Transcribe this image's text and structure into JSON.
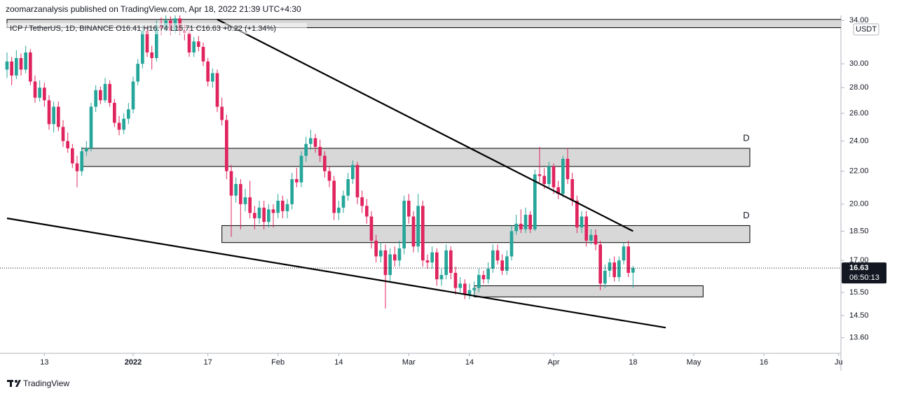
{
  "header": "zoomarzanalysis published on TradingView.com, Apr 18, 2022 21:39 UTC+4:30",
  "footer": "TradingView",
  "chart_data": {
    "type": "candlestick",
    "legend_text": "ICP / TetherUS, 1D, BINANCE  O16.41 H16.74 L15.71 C16.63 +0.22 (+1.34%)",
    "currency": "USDT",
    "countdown": "06:50:13",
    "up_color": "#26a69a",
    "down_color": "#e0245e",
    "line_color": "#000000",
    "zone_color": "#d1d1d1",
    "log_scale": true,
    "xlim": [
      "2021-12-05",
      "2022-06-03"
    ],
    "ylim": [
      13,
      34.5
    ],
    "yticks": [
      {
        "value": 34,
        "label": "34.00"
      },
      {
        "value": 30,
        "label": "30.00"
      },
      {
        "value": 28,
        "label": "28.00"
      },
      {
        "value": 26,
        "label": "26.00"
      },
      {
        "value": 24,
        "label": "24.00"
      },
      {
        "value": 22,
        "label": "22.00"
      },
      {
        "value": 20,
        "label": "20.00"
      },
      {
        "value": 18.5,
        "label": "18.50"
      },
      {
        "value": 17,
        "label": "17.00"
      },
      {
        "value": 15.5,
        "label": "15.50"
      },
      {
        "value": 14.5,
        "label": "14.50"
      },
      {
        "value": 13.6,
        "label": "13.60"
      }
    ],
    "xticks": [
      {
        "value": "2021-12-13",
        "label": "13"
      },
      {
        "value": "2022-01-01",
        "label": "2022"
      },
      {
        "value": "2022-01-17",
        "label": "17"
      },
      {
        "value": "2022-02-01",
        "label": "Feb"
      },
      {
        "value": "2022-02-14",
        "label": "14"
      },
      {
        "value": "2022-03-01",
        "label": "Mar"
      },
      {
        "value": "2022-03-14",
        "label": "14"
      },
      {
        "value": "2022-04-01",
        "label": "Apr"
      },
      {
        "value": "2022-04-18",
        "label": "18"
      },
      {
        "value": "2022-05-01",
        "label": "May"
      },
      {
        "value": "2022-05-16",
        "label": "16"
      },
      {
        "value": "2022-06-01",
        "label": "Ju"
      }
    ],
    "zones": [
      {
        "x": [
          "2021-12-05",
          "2022-06-03"
        ],
        "y": [
          33.3,
          34.1
        ]
      },
      {
        "x": [
          "2021-12-21",
          "2022-05-13"
        ],
        "y": [
          22.3,
          23.5
        ],
        "label": "D"
      },
      {
        "x": [
          "2022-01-20",
          "2022-05-13"
        ],
        "y": [
          17.9,
          18.8
        ],
        "label": "D"
      },
      {
        "x": [
          "2022-03-15",
          "2022-05-03"
        ],
        "y": [
          15.3,
          15.8
        ]
      }
    ],
    "trendlines": [
      {
        "x": [
          "2022-01-19",
          "2022-04-18"
        ],
        "y": [
          34.1,
          18.5
        ]
      },
      {
        "x": [
          "2021-12-05",
          "2022-04-25"
        ],
        "y": [
          19.2,
          14.0
        ]
      }
    ],
    "x": [
      "2021-12-05",
      "2021-12-06",
      "2021-12-07",
      "2021-12-08",
      "2021-12-09",
      "2021-12-10",
      "2021-12-11",
      "2021-12-12",
      "2021-12-13",
      "2021-12-14",
      "2021-12-15",
      "2021-12-16",
      "2021-12-17",
      "2021-12-18",
      "2021-12-19",
      "2021-12-20",
      "2021-12-21",
      "2021-12-22",
      "2021-12-23",
      "2021-12-24",
      "2021-12-25",
      "2021-12-26",
      "2021-12-27",
      "2021-12-28",
      "2021-12-29",
      "2021-12-30",
      "2021-12-31",
      "2022-01-01",
      "2022-01-02",
      "2022-01-03",
      "2022-01-04",
      "2022-01-05",
      "2022-01-06",
      "2022-01-07",
      "2022-01-08",
      "2022-01-09",
      "2022-01-10",
      "2022-01-11",
      "2022-01-12",
      "2022-01-13",
      "2022-01-14",
      "2022-01-15",
      "2022-01-16",
      "2022-01-17",
      "2022-01-18",
      "2022-01-19",
      "2022-01-20",
      "2022-01-21",
      "2022-01-22",
      "2022-01-23",
      "2022-01-24",
      "2022-01-25",
      "2022-01-26",
      "2022-01-27",
      "2022-01-28",
      "2022-01-29",
      "2022-01-30",
      "2022-01-31",
      "2022-02-01",
      "2022-02-02",
      "2022-02-03",
      "2022-02-04",
      "2022-02-05",
      "2022-02-06",
      "2022-02-07",
      "2022-02-08",
      "2022-02-09",
      "2022-02-10",
      "2022-02-11",
      "2022-02-12",
      "2022-02-13",
      "2022-02-14",
      "2022-02-15",
      "2022-02-16",
      "2022-02-17",
      "2022-02-18",
      "2022-02-19",
      "2022-02-20",
      "2022-02-21",
      "2022-02-22",
      "2022-02-23",
      "2022-02-24",
      "2022-02-25",
      "2022-02-26",
      "2022-02-27",
      "2022-02-28",
      "2022-03-01",
      "2022-03-02",
      "2022-03-03",
      "2022-03-04",
      "2022-03-05",
      "2022-03-06",
      "2022-03-07",
      "2022-03-08",
      "2022-03-09",
      "2022-03-10",
      "2022-03-11",
      "2022-03-12",
      "2022-03-13",
      "2022-03-14",
      "2022-03-15",
      "2022-03-16",
      "2022-03-17",
      "2022-03-18",
      "2022-03-19",
      "2022-03-20",
      "2022-03-21",
      "2022-03-22",
      "2022-03-23",
      "2022-03-24",
      "2022-03-25",
      "2022-03-26",
      "2022-03-27",
      "2022-03-28",
      "2022-03-29",
      "2022-03-30",
      "2022-03-31",
      "2022-04-01",
      "2022-04-02",
      "2022-04-03",
      "2022-04-04",
      "2022-04-05",
      "2022-04-06",
      "2022-04-07",
      "2022-04-08",
      "2022-04-09",
      "2022-04-10",
      "2022-04-11",
      "2022-04-12",
      "2022-04-13",
      "2022-04-14",
      "2022-04-15",
      "2022-04-16",
      "2022-04-17",
      "2022-04-18"
    ],
    "ohlc": [
      [
        29.5,
        31.0,
        28.8,
        30.2
      ],
      [
        30.2,
        30.6,
        28.2,
        29.0
      ],
      [
        29.0,
        31.2,
        28.7,
        30.5
      ],
      [
        30.5,
        30.9,
        29.0,
        29.5
      ],
      [
        29.5,
        31.6,
        29.2,
        31.0
      ],
      [
        31.0,
        31.3,
        28.2,
        28.5
      ],
      [
        28.5,
        29.0,
        26.8,
        27.2
      ],
      [
        27.2,
        28.6,
        26.9,
        28.0
      ],
      [
        28.0,
        28.4,
        26.5,
        27.0
      ],
      [
        27.0,
        27.4,
        24.8,
        25.2
      ],
      [
        25.2,
        26.9,
        24.6,
        26.5
      ],
      [
        26.5,
        26.9,
        24.7,
        25.0
      ],
      [
        25.0,
        25.5,
        23.6,
        24.0
      ],
      [
        24.0,
        24.6,
        23.2,
        23.5
      ],
      [
        23.5,
        23.8,
        22.2,
        22.5
      ],
      [
        22.5,
        23.0,
        21.0,
        22.0
      ],
      [
        22.0,
        23.6,
        21.7,
        23.3
      ],
      [
        23.3,
        24.0,
        23.0,
        23.5
      ],
      [
        23.5,
        26.8,
        23.3,
        26.5
      ],
      [
        26.5,
        28.2,
        26.1,
        27.8
      ],
      [
        27.8,
        28.1,
        26.7,
        27.0
      ],
      [
        27.0,
        28.8,
        26.8,
        28.3
      ],
      [
        28.3,
        28.6,
        26.5,
        26.8
      ],
      [
        26.8,
        27.1,
        25.0,
        25.3
      ],
      [
        25.3,
        25.8,
        24.4,
        24.8
      ],
      [
        24.8,
        26.0,
        24.5,
        25.6
      ],
      [
        25.6,
        26.8,
        25.2,
        26.3
      ],
      [
        26.3,
        28.9,
        26.0,
        28.5
      ],
      [
        28.5,
        30.4,
        28.2,
        30.0
      ],
      [
        30.0,
        33.5,
        29.6,
        33.0
      ],
      [
        33.0,
        33.4,
        30.6,
        31.0
      ],
      [
        31.0,
        31.6,
        29.5,
        30.5
      ],
      [
        30.5,
        34.0,
        30.2,
        33.5
      ],
      [
        33.5,
        34.3,
        32.6,
        33.2
      ],
      [
        33.2,
        34.5,
        32.9,
        34.0
      ],
      [
        34.0,
        34.4,
        32.6,
        33.0
      ],
      [
        33.0,
        34.5,
        32.7,
        34.2
      ],
      [
        34.2,
        34.5,
        32.6,
        33.0
      ],
      [
        33.0,
        33.6,
        32.1,
        32.8
      ],
      [
        32.8,
        33.2,
        30.6,
        31.0
      ],
      [
        31.0,
        32.4,
        30.6,
        32.0
      ],
      [
        32.0,
        32.5,
        31.1,
        31.5
      ],
      [
        31.5,
        31.9,
        29.8,
        30.2
      ],
      [
        30.2,
        30.5,
        28.1,
        28.5
      ],
      [
        28.5,
        29.6,
        28.0,
        29.2
      ],
      [
        29.2,
        29.5,
        26.1,
        26.5
      ],
      [
        26.5,
        27.2,
        25.1,
        25.5
      ],
      [
        25.5,
        25.9,
        21.5,
        22.0
      ],
      [
        22.0,
        22.4,
        18.2,
        20.5
      ],
      [
        20.5,
        21.6,
        20.1,
        21.2
      ],
      [
        21.2,
        21.5,
        18.6,
        20.0
      ],
      [
        20.0,
        20.9,
        19.6,
        20.4
      ],
      [
        20.4,
        21.4,
        19.2,
        19.5
      ],
      [
        19.5,
        19.9,
        18.6,
        19.2
      ],
      [
        19.2,
        20.2,
        18.9,
        19.8
      ],
      [
        19.8,
        20.2,
        18.6,
        19.0
      ],
      [
        19.0,
        20.0,
        18.7,
        19.7
      ],
      [
        19.7,
        20.0,
        18.7,
        19.5
      ],
      [
        19.5,
        20.6,
        19.2,
        20.2
      ],
      [
        20.2,
        20.5,
        19.2,
        19.6
      ],
      [
        19.6,
        20.3,
        19.2,
        20.0
      ],
      [
        20.0,
        21.9,
        19.7,
        21.5
      ],
      [
        21.5,
        22.2,
        21.0,
        21.3
      ],
      [
        21.3,
        23.3,
        21.0,
        23.0
      ],
      [
        23.0,
        24.3,
        22.6,
        23.8
      ],
      [
        23.8,
        24.8,
        23.4,
        24.2
      ],
      [
        24.2,
        24.5,
        23.2,
        23.6
      ],
      [
        23.6,
        24.1,
        22.6,
        23.0
      ],
      [
        23.0,
        23.3,
        21.6,
        22.0
      ],
      [
        22.0,
        22.3,
        21.0,
        21.4
      ],
      [
        21.4,
        21.7,
        19.1,
        19.5
      ],
      [
        19.5,
        20.2,
        19.1,
        19.8
      ],
      [
        19.8,
        20.8,
        19.5,
        20.5
      ],
      [
        20.5,
        21.9,
        20.2,
        21.5
      ],
      [
        21.5,
        22.7,
        21.2,
        22.4
      ],
      [
        22.4,
        22.6,
        20.0,
        20.4
      ],
      [
        20.4,
        20.8,
        19.5,
        19.9
      ],
      [
        19.9,
        20.3,
        18.9,
        19.3
      ],
      [
        19.3,
        19.6,
        17.6,
        18.0
      ],
      [
        18.0,
        18.3,
        16.9,
        17.2
      ],
      [
        17.2,
        17.9,
        16.9,
        17.5
      ],
      [
        17.5,
        17.8,
        14.8,
        16.3
      ],
      [
        16.3,
        17.6,
        16.0,
        17.3
      ],
      [
        17.3,
        17.7,
        16.7,
        17.0
      ],
      [
        17.0,
        18.0,
        16.7,
        17.6
      ],
      [
        17.6,
        20.5,
        17.3,
        20.2
      ],
      [
        20.2,
        20.6,
        18.9,
        19.3
      ],
      [
        19.3,
        19.6,
        17.4,
        17.7
      ],
      [
        17.7,
        20.6,
        17.4,
        19.9
      ],
      [
        19.9,
        20.2,
        16.7,
        17.0
      ],
      [
        17.0,
        17.3,
        16.6,
        16.9
      ],
      [
        16.9,
        17.7,
        16.6,
        17.4
      ],
      [
        17.4,
        17.6,
        15.8,
        16.1
      ],
      [
        16.1,
        16.6,
        15.8,
        16.3
      ],
      [
        16.3,
        17.8,
        16.1,
        17.5
      ],
      [
        17.5,
        17.7,
        16.1,
        16.4
      ],
      [
        16.4,
        16.7,
        15.4,
        15.7
      ],
      [
        15.7,
        16.2,
        15.5,
        15.9
      ],
      [
        15.9,
        16.1,
        15.2,
        15.4
      ],
      [
        15.4,
        15.9,
        15.2,
        15.6
      ],
      [
        15.6,
        16.0,
        15.3,
        15.7
      ],
      [
        15.7,
        16.6,
        15.5,
        16.3
      ],
      [
        16.3,
        16.5,
        15.9,
        16.1
      ],
      [
        16.1,
        16.9,
        15.9,
        16.6
      ],
      [
        16.6,
        17.8,
        16.4,
        17.5
      ],
      [
        17.5,
        17.8,
        16.8,
        17.0
      ],
      [
        17.0,
        17.3,
        16.3,
        16.5
      ],
      [
        16.5,
        17.5,
        16.3,
        17.2
      ],
      [
        17.2,
        18.8,
        17.0,
        18.5
      ],
      [
        18.5,
        19.4,
        18.3,
        18.9
      ],
      [
        18.9,
        19.7,
        18.4,
        18.6
      ],
      [
        18.6,
        19.8,
        18.4,
        19.4
      ],
      [
        19.4,
        19.6,
        18.4,
        18.6
      ],
      [
        18.6,
        22.1,
        18.5,
        21.8
      ],
      [
        21.8,
        23.6,
        21.3,
        21.7
      ],
      [
        21.7,
        22.2,
        20.9,
        21.2
      ],
      [
        21.2,
        22.6,
        20.9,
        22.3
      ],
      [
        22.3,
        22.5,
        20.6,
        21.0
      ],
      [
        21.0,
        21.4,
        20.3,
        20.6
      ],
      [
        20.6,
        23.0,
        20.4,
        22.8
      ],
      [
        22.8,
        23.5,
        21.2,
        21.5
      ],
      [
        21.5,
        21.9,
        19.9,
        20.2
      ],
      [
        20.2,
        20.5,
        18.4,
        18.7
      ],
      [
        18.7,
        19.6,
        18.4,
        19.3
      ],
      [
        19.3,
        19.6,
        17.7,
        18.0
      ],
      [
        18.0,
        18.6,
        17.8,
        18.3
      ],
      [
        18.3,
        18.6,
        17.5,
        17.8
      ],
      [
        17.8,
        18.0,
        15.6,
        15.9
      ],
      [
        15.9,
        16.8,
        15.7,
        16.5
      ],
      [
        16.5,
        17.1,
        16.2,
        16.9
      ],
      [
        16.9,
        17.2,
        16.0,
        16.2
      ],
      [
        16.2,
        17.2,
        16.0,
        17.0
      ],
      [
        17.0,
        17.9,
        16.8,
        17.7
      ],
      [
        17.7,
        18.0,
        16.2,
        16.4
      ],
      [
        16.41,
        16.74,
        15.71,
        16.63
      ]
    ]
  }
}
